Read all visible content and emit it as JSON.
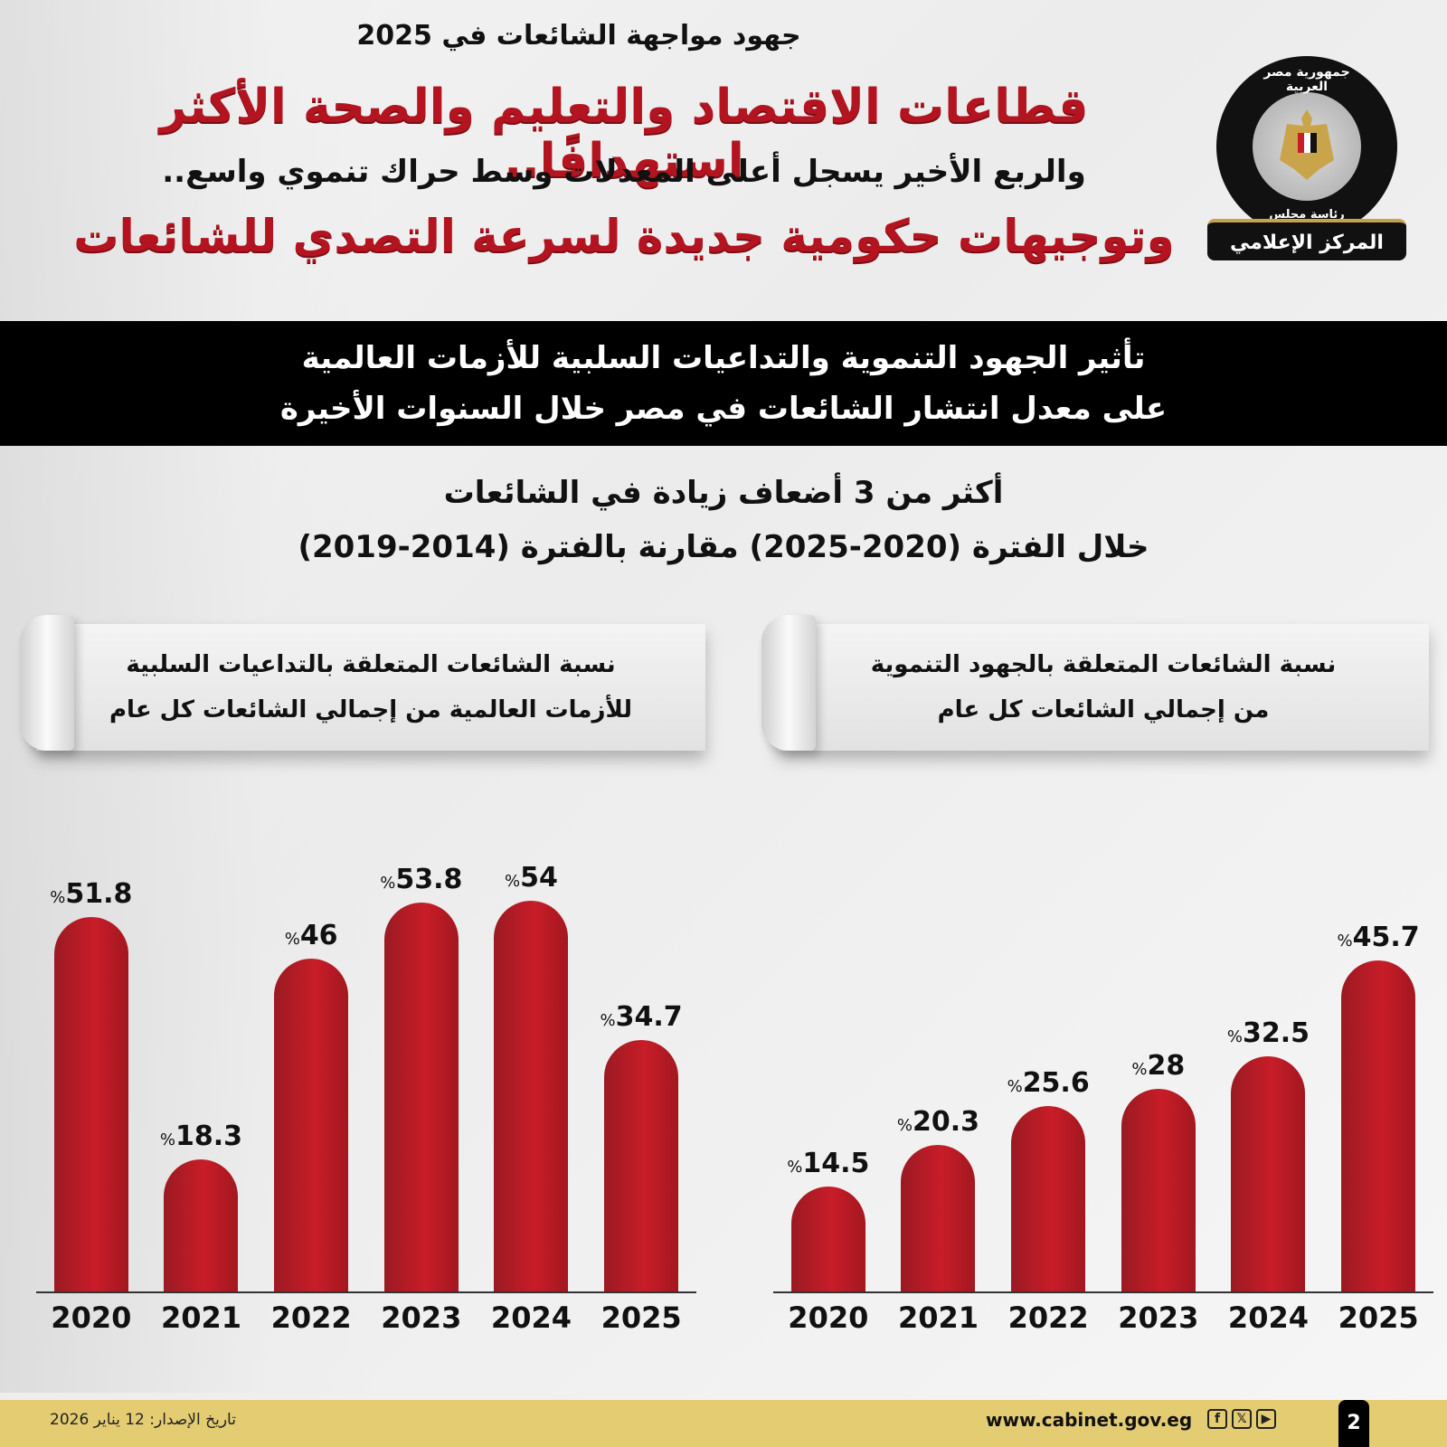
{
  "header": {
    "kicker": "جهود مواجهة الشائعات في 2025",
    "headline1": "قطاعات الاقتصاد والتعليم والصحة الأكثر استهدافًا..",
    "headline2": "والربع الأخير يسجل أعلى المعدلات وسط حراك تنموي واسع..",
    "headline3": "وتوجيهات حكومية جديدة لسرعة التصدي للشائعات",
    "logo": {
      "ring_top": "جمهورية مصر العربية",
      "ring_bottom": "رئاسة مجلس الوزراء",
      "banner": "المركز الإعلامي"
    }
  },
  "band": {
    "line1": "تأثير الجهود التنموية والتداعيات السلبية للأزمات العالمية",
    "line2": "على معدل انتشار الشائعات في مصر خلال السنوات الأخيرة"
  },
  "subtitle": {
    "line1": "أكثر من 3 أضعاف زيادة في الشائعات",
    "line2": "خلال الفترة (2020-2025) مقارنة بالفترة (2014-2019)"
  },
  "ribbons": {
    "left": {
      "line1": "نسبة الشائعات المتعلقة بالتداعيات السلبية",
      "line2": "للأزمات العالمية من إجمالي الشائعات كل عام"
    },
    "right": {
      "line1": "نسبة الشائعات المتعلقة بالجهود التنموية",
      "line2": "من إجمالي الشائعات كل عام"
    }
  },
  "chart_data": [
    {
      "type": "bar",
      "title": "نسبة الشائعات المتعلقة بالتداعيات السلبية للأزمات العالمية من إجمالي الشائعات كل عام",
      "categories": [
        "2020",
        "2021",
        "2022",
        "2023",
        "2024",
        "2025"
      ],
      "values": [
        51.8,
        18.3,
        46,
        53.8,
        54,
        34.7
      ],
      "labels": [
        "51.8",
        "18.3",
        "46",
        "53.8",
        "54",
        "34.7"
      ],
      "unit": "%",
      "xlabel": "",
      "ylabel": "",
      "ylim": [
        0,
        60
      ],
      "color": "#c81d28",
      "grid": false
    },
    {
      "type": "bar",
      "title": "نسبة الشائعات المتعلقة بالجهود التنموية من إجمالي الشائعات كل عام",
      "categories": [
        "2020",
        "2021",
        "2022",
        "2023",
        "2024",
        "2025"
      ],
      "values": [
        14.5,
        20.3,
        25.6,
        28,
        32.5,
        45.7
      ],
      "labels": [
        "14.5",
        "20.3",
        "25.6",
        "28",
        "32.5",
        "45.7"
      ],
      "unit": "%",
      "xlabel": "",
      "ylabel": "",
      "ylim": [
        0,
        60
      ],
      "color": "#c81d28",
      "grid": false
    }
  ],
  "footer": {
    "issue_date": "تاريخ الإصدار: 12 يناير 2026",
    "website": "www.cabinet.gov.eg",
    "social": [
      "f",
      "𝕏",
      "▶"
    ],
    "page_number": "2",
    "color": "#e4cc73"
  }
}
